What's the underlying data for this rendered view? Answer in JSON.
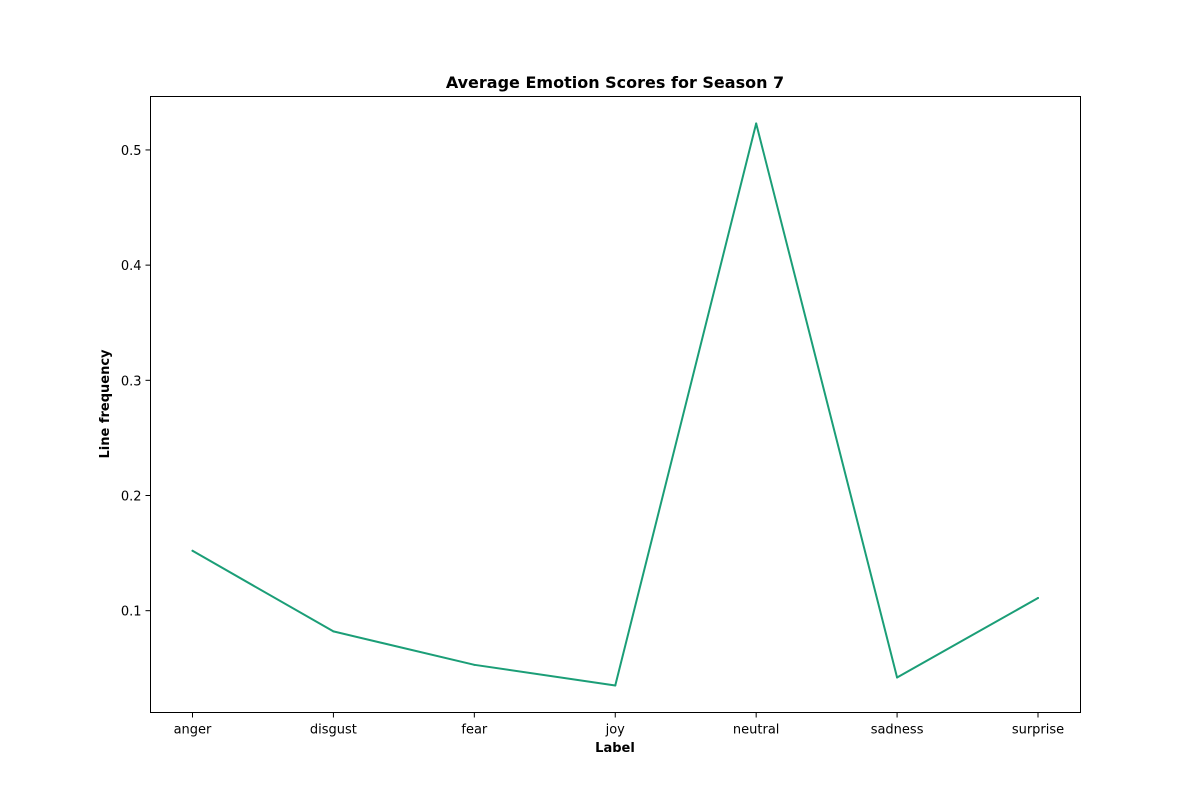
{
  "chart_data": {
    "type": "line",
    "title": "Average Emotion Scores for Season 7",
    "xlabel": "Label",
    "ylabel": "Line frequency",
    "categories": [
      "anger",
      "disgust",
      "fear",
      "joy",
      "neutral",
      "sadness",
      "surprise"
    ],
    "series": [
      {
        "values": [
          0.152,
          0.082,
          0.053,
          0.035,
          0.523,
          0.042,
          0.111
        ],
        "color": "#1b9e77"
      }
    ],
    "ylim": [
      0.0116,
      0.5464
    ],
    "yticks": [
      0.1,
      0.2,
      0.3,
      0.4,
      0.5
    ],
    "ytick_labels": [
      "0.1",
      "0.2",
      "0.3",
      "0.4",
      "0.5"
    ],
    "grid": false,
    "legend": "none"
  }
}
